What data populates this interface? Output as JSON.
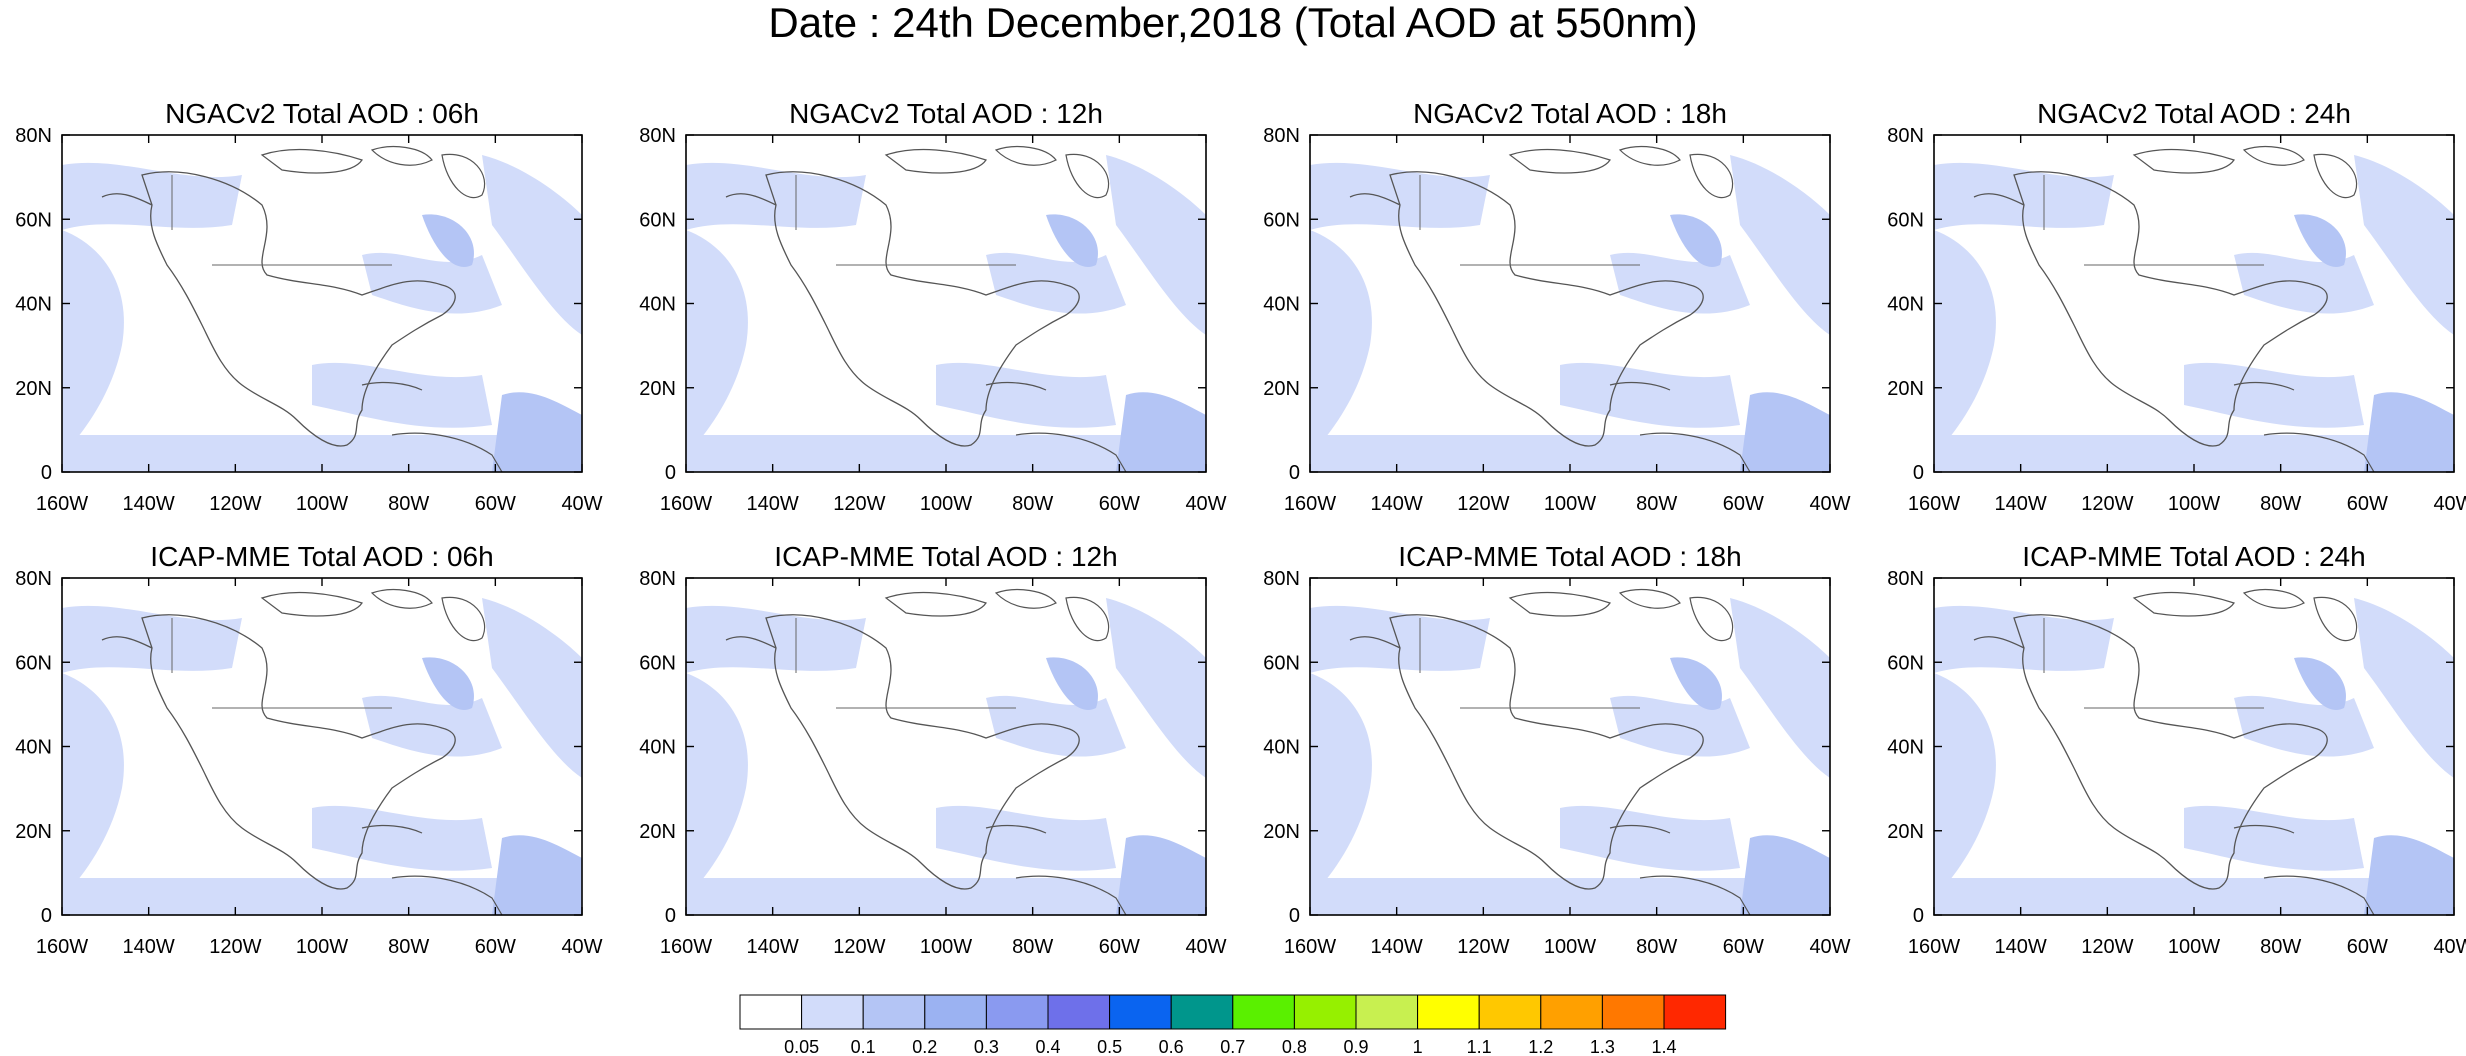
{
  "title": "Date : 24th December,2018 (Total AOD at 550nm)",
  "panel_titles": [
    "NGACv2 Total AOD : 06h",
    "NGACv2 Total AOD : 12h",
    "NGACv2 Total AOD : 18h",
    "NGACv2 Total AOD : 24h",
    "ICAP-MME Total AOD : 06h",
    "ICAP-MME Total AOD : 12h",
    "ICAP-MME Total AOD : 18h",
    "ICAP-MME Total AOD : 24h"
  ],
  "lat_ticks": [
    "80N",
    "60N",
    "40N",
    "20N",
    "0"
  ],
  "lon_ticks": [
    "160W",
    "140W",
    "120W",
    "100W",
    "80W",
    "60W",
    "40W"
  ],
  "colorbar": {
    "colors": [
      "#ffffff",
      "#d2dcfa",
      "#b4c5f5",
      "#9bb2f2",
      "#8a9af0",
      "#6e70ea",
      "#0a64f0",
      "#00968c",
      "#5af000",
      "#96f000",
      "#c8f050",
      "#ffff00",
      "#ffc800",
      "#ffa000",
      "#ff7800",
      "#ff2800"
    ],
    "labels": [
      "0.05",
      "0.1",
      "0.2",
      "0.3",
      "0.4",
      "0.5",
      "0.6",
      "0.7",
      "0.8",
      "0.9",
      "1",
      "1.1",
      "1.2",
      "1.3",
      "1.4"
    ]
  }
}
